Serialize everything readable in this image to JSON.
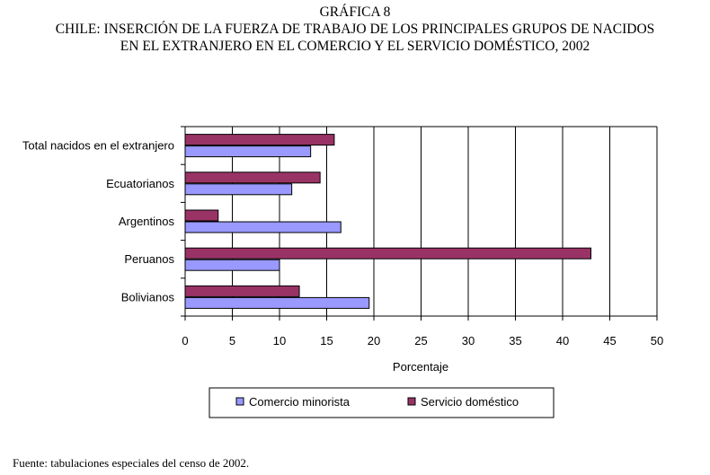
{
  "header": {
    "caption": "GRÁFICA 8",
    "title_line1": "CHILE: INSERCIÓN DE LA FUERZA DE TRABAJO DE LOS PRINCIPALES GRUPOS DE NACIDOS",
    "title_line2": "EN EL EXTRANJERO EN EL COMERCIO Y EL SERVICIO DOMÉSTICO, 2002"
  },
  "chart_data": {
    "type": "bar",
    "orientation": "horizontal",
    "title": "CHILE: INSERCIÓN DE LA FUERZA DE TRABAJO DE LOS PRINCIPALES GRUPOS DE NACIDOS EN EL EXTRANJERO EN EL COMERCIO Y EL SERVICIO DOMÉSTICO, 2002",
    "categories": [
      "Total nacidos en el extranjero",
      "Ecuatorianos",
      "Argentinos",
      "Peruanos",
      "Bolivianos"
    ],
    "series": [
      {
        "name": "Servicio doméstico",
        "color": "#993366",
        "values": [
          15.8,
          14.3,
          3.5,
          43.0,
          12.1
        ]
      },
      {
        "name": "Comercio minorista",
        "color": "#9999ff",
        "values": [
          13.3,
          11.3,
          16.5,
          10.0,
          19.5
        ]
      }
    ],
    "legend_order": [
      "Comercio minorista",
      "Servicio doméstico"
    ],
    "xlabel": "Porcentaje",
    "ylabel": "",
    "xlim": [
      0,
      50
    ],
    "xticks": [
      "0",
      "5",
      "10",
      "15",
      "20",
      "25",
      "30",
      "35",
      "40",
      "45",
      "50"
    ],
    "grid": true,
    "legend_position": "bottom"
  },
  "footer": {
    "source": "Fuente: tabulaciones especiales del censo de 2002."
  }
}
